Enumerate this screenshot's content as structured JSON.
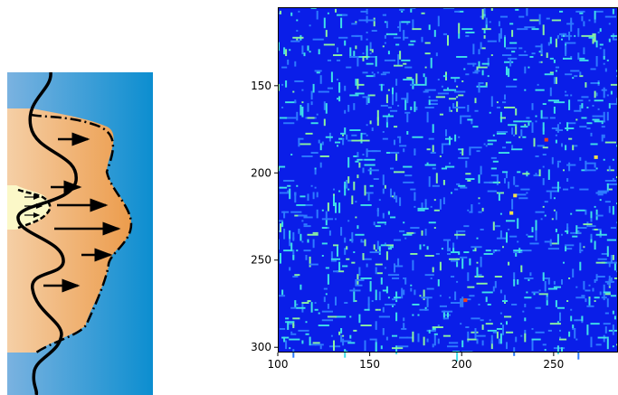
{
  "chart_data": [
    {
      "type": "diagram",
      "colors": {
        "outer_fluid_left": "#7ab2e0",
        "outer_fluid_right": "#0c8ed0",
        "jet_left": "#f5cfa6",
        "jet_right": "#ec9c4c",
        "core": "#fbf8c8",
        "profile_line": "#000000",
        "arrow": "#000000"
      },
      "arrows": {
        "outer_profile": 6,
        "inner_core": 3
      }
    },
    {
      "type": "heatmap",
      "xlim": [
        100,
        285
      ],
      "ylim": [
        303,
        105
      ],
      "xticks": [
        100,
        150,
        200,
        250
      ],
      "yticks": [
        150,
        200,
        250,
        300
      ],
      "xtick_labels": [
        "100",
        "150",
        "200",
        "250"
      ],
      "ytick_labels": [
        "150",
        "200",
        "250",
        "300"
      ],
      "colormap": "jet",
      "value_range": [
        0,
        1
      ],
      "background_value": 0.07,
      "grid": false,
      "colors": {
        "background": "#0a1ee8",
        "low": "#2d7bff",
        "mid": "#3fe0e8",
        "high_green": "#8cf2a0",
        "peak_yellow": "#f2e04a",
        "peak_red": "#f04018"
      }
    }
  ]
}
